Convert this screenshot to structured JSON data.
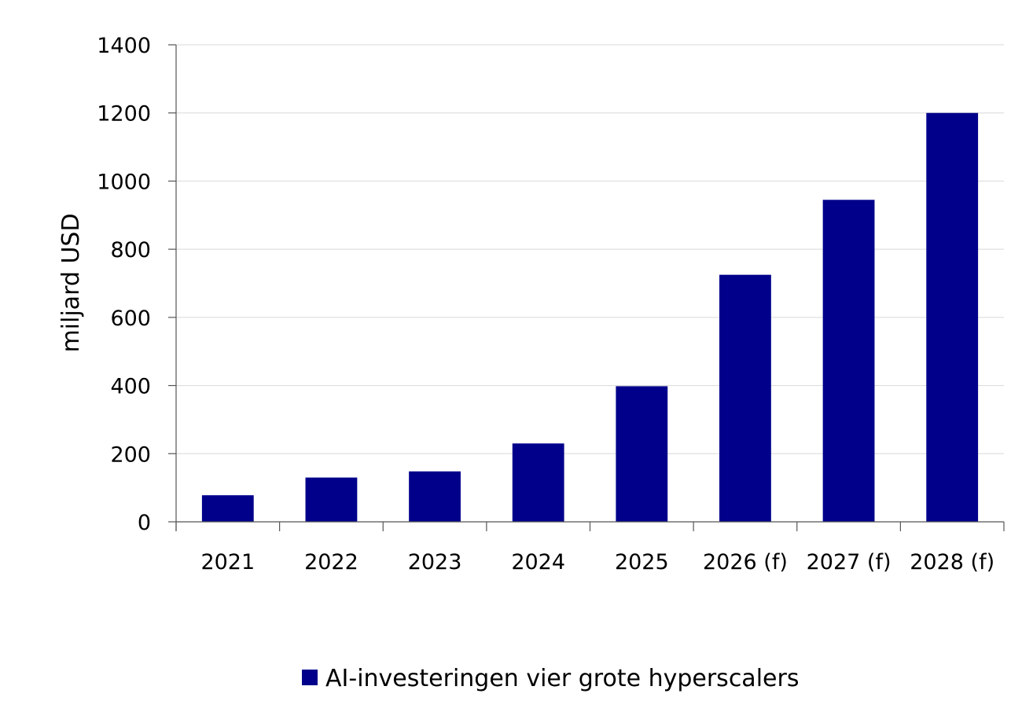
{
  "chart_data": {
    "type": "bar",
    "title": "",
    "xlabel": "",
    "ylabel": "miljard USD",
    "categories": [
      "2021",
      "2022",
      "2023",
      "2024",
      "2025",
      "2026 (f)",
      "2027 (f)",
      "2028 (f)"
    ],
    "series": [
      {
        "name": "AI-investeringen vier grote hyperscalers",
        "values": [
          78,
          130,
          148,
          230,
          398,
          725,
          945,
          1200
        ],
        "color": "#00008b"
      }
    ],
    "ylim": [
      0,
      1400
    ],
    "yticks": [
      "0",
      "200",
      "400",
      "600",
      "800",
      "1000",
      "1200",
      "1400"
    ],
    "grid": true,
    "legend_position": "bottom-center"
  }
}
